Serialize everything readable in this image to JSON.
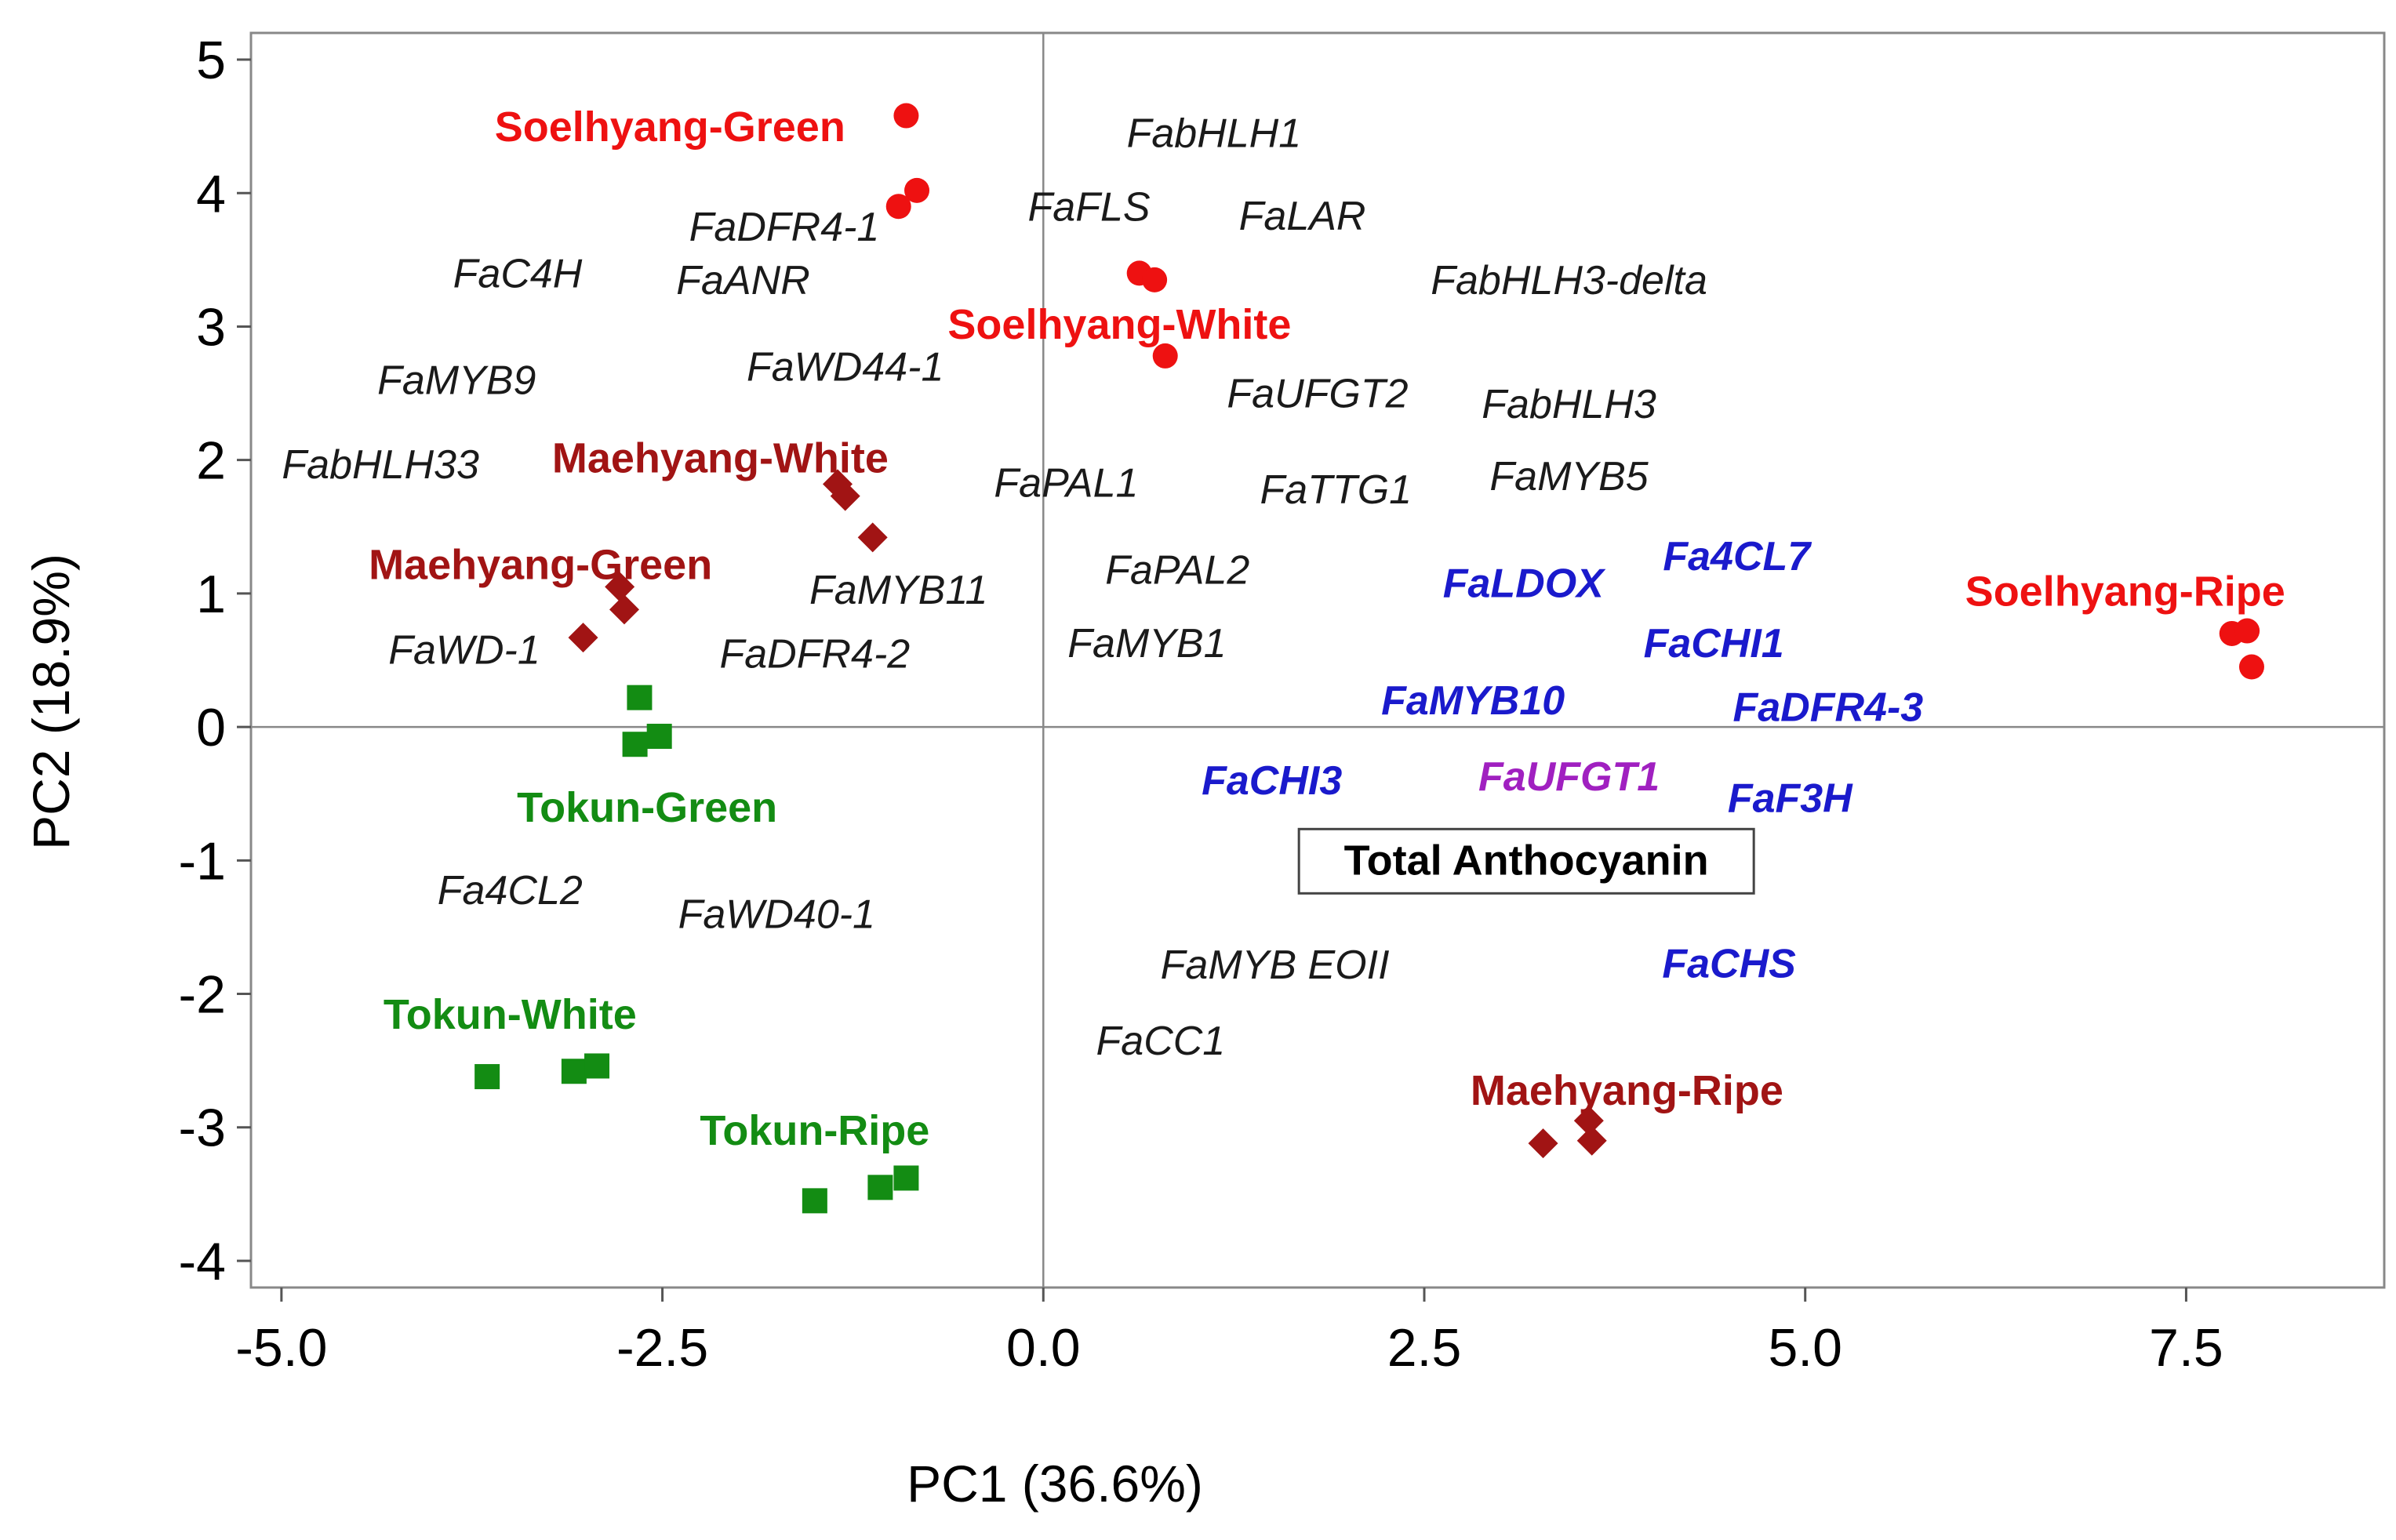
{
  "chart_data": {
    "type": "scatter",
    "title": "",
    "xlabel": "PC1 (36.6%)",
    "ylabel": "PC2 (18.9%)",
    "xlim": [
      -5.2,
      8.8
    ],
    "ylim": [
      -4.2,
      5.2
    ],
    "grid": false,
    "x_ticks": [
      {
        "value": -5.0,
        "label": "-5.0"
      },
      {
        "value": -2.5,
        "label": "-2.5"
      },
      {
        "value": 0.0,
        "label": "0.0"
      },
      {
        "value": 2.5,
        "label": "2.5"
      },
      {
        "value": 5.0,
        "label": "5.0"
      },
      {
        "value": 7.5,
        "label": "7.5"
      }
    ],
    "y_ticks": [
      {
        "value": 5,
        "label": "5"
      },
      {
        "value": 4,
        "label": "4"
      },
      {
        "value": 3,
        "label": "3"
      },
      {
        "value": 2,
        "label": "2"
      },
      {
        "value": 1,
        "label": "1"
      },
      {
        "value": 0,
        "label": "0"
      },
      {
        "value": -1,
        "label": "-1"
      },
      {
        "value": -2,
        "label": "-2"
      },
      {
        "value": -3,
        "label": "-3"
      },
      {
        "value": -4,
        "label": "-4"
      }
    ],
    "reference_lines": {
      "x": 0,
      "y": 0
    },
    "colors": {
      "soelhyang": "#ee1111",
      "maehyang": "#a11414",
      "tokun": "#138c13",
      "gene_default": "#1a1a1a",
      "gene_blue": "#1a1acc",
      "gene_purple": "#a020c0"
    },
    "series": [
      {
        "name": "Soelhyang",
        "marker": "circle",
        "color": "#ee1111",
        "points": [
          [
            -0.9,
            4.58
          ],
          [
            -0.83,
            4.02
          ],
          [
            -0.95,
            3.9
          ],
          [
            0.63,
            3.4
          ],
          [
            0.73,
            3.35
          ],
          [
            0.8,
            2.78
          ],
          [
            7.8,
            0.7
          ],
          [
            7.9,
            0.72
          ],
          [
            7.93,
            0.45
          ]
        ]
      },
      {
        "name": "Maehyang",
        "marker": "diamond",
        "color": "#a11414",
        "points": [
          [
            -1.35,
            1.82
          ],
          [
            -1.3,
            1.73
          ],
          [
            -1.12,
            1.42
          ],
          [
            -2.78,
            1.05
          ],
          [
            -2.75,
            0.88
          ],
          [
            -3.02,
            0.67
          ],
          [
            3.28,
            -3.12
          ],
          [
            3.58,
            -2.95
          ],
          [
            3.6,
            -3.1
          ]
        ]
      },
      {
        "name": "Tokun",
        "marker": "square",
        "color": "#138c13",
        "points": [
          [
            -2.65,
            0.22
          ],
          [
            -2.68,
            -0.13
          ],
          [
            -2.52,
            -0.07
          ],
          [
            -3.65,
            -2.62
          ],
          [
            -3.08,
            -2.58
          ],
          [
            -2.93,
            -2.54
          ],
          [
            -1.5,
            -3.55
          ],
          [
            -1.07,
            -3.45
          ],
          [
            -0.9,
            -3.38
          ]
        ]
      }
    ],
    "group_labels": [
      {
        "text": "Soelhyang-Green",
        "x": -2.45,
        "y": 4.5,
        "color": "#ee1111"
      },
      {
        "text": "Soelhyang-White",
        "x": 0.5,
        "y": 3.02,
        "color": "#ee1111"
      },
      {
        "text": "Soelhyang-Ripe",
        "x": 7.1,
        "y": 1.02,
        "color": "#ee1111"
      },
      {
        "text": "Maehyang-White",
        "x": -2.12,
        "y": 2.02,
        "color": "#a11414"
      },
      {
        "text": "Maehyang-Green",
        "x": -3.3,
        "y": 1.22,
        "color": "#a11414"
      },
      {
        "text": "Maehyang-Ripe",
        "x": 3.83,
        "y": -2.72,
        "color": "#a11414"
      },
      {
        "text": "Tokun-Green",
        "x": -2.6,
        "y": -0.6,
        "color": "#138c13"
      },
      {
        "text": "Tokun-White",
        "x": -3.5,
        "y": -2.15,
        "color": "#138c13"
      },
      {
        "text": "Tokun-Ripe",
        "x": -1.5,
        "y": -3.02,
        "color": "#138c13"
      }
    ],
    "gene_labels": [
      {
        "text": "FabHLH1",
        "x": 1.12,
        "y": 4.45,
        "style": "default"
      },
      {
        "text": "FaDFR4-1",
        "x": -1.7,
        "y": 3.75,
        "style": "default"
      },
      {
        "text": "FaFLS",
        "x": 0.3,
        "y": 3.9,
        "style": "default"
      },
      {
        "text": "FaLAR",
        "x": 1.7,
        "y": 3.83,
        "style": "default"
      },
      {
        "text": "FaC4H",
        "x": -3.45,
        "y": 3.4,
        "style": "default"
      },
      {
        "text": "FaANR",
        "x": -1.97,
        "y": 3.35,
        "style": "default"
      },
      {
        "text": "FabHLH3-delta",
        "x": 3.45,
        "y": 3.35,
        "style": "default"
      },
      {
        "text": "FaMYB9",
        "x": -3.85,
        "y": 2.6,
        "style": "default"
      },
      {
        "text": "FaWD44-1",
        "x": -1.3,
        "y": 2.7,
        "style": "default"
      },
      {
        "text": "FaUFGT2",
        "x": 1.8,
        "y": 2.5,
        "style": "default"
      },
      {
        "text": "FabHLH3",
        "x": 3.45,
        "y": 2.42,
        "style": "default"
      },
      {
        "text": "FabHLH33",
        "x": -4.35,
        "y": 1.97,
        "style": "default"
      },
      {
        "text": "FaPAL1",
        "x": 0.15,
        "y": 1.83,
        "style": "default"
      },
      {
        "text": "FaTTG1",
        "x": 1.92,
        "y": 1.78,
        "style": "default"
      },
      {
        "text": "FaMYB5",
        "x": 3.45,
        "y": 1.88,
        "style": "default"
      },
      {
        "text": "FaMYB11",
        "x": -0.95,
        "y": 1.03,
        "style": "default"
      },
      {
        "text": "FaPAL2",
        "x": 0.88,
        "y": 1.18,
        "style": "default"
      },
      {
        "text": "FaLDOX",
        "x": 3.15,
        "y": 1.08,
        "style": "blue"
      },
      {
        "text": "Fa4CL7",
        "x": 4.55,
        "y": 1.28,
        "style": "blue"
      },
      {
        "text": "FaWD-1",
        "x": -3.8,
        "y": 0.58,
        "style": "default"
      },
      {
        "text": "FaDFR4-2",
        "x": -1.5,
        "y": 0.55,
        "style": "default"
      },
      {
        "text": "FaMYB1",
        "x": 0.68,
        "y": 0.63,
        "style": "default"
      },
      {
        "text": "FaCHI1",
        "x": 4.4,
        "y": 0.63,
        "style": "blue"
      },
      {
        "text": "FaMYB10",
        "x": 2.82,
        "y": 0.2,
        "style": "blue"
      },
      {
        "text": "FaDFR4-3",
        "x": 5.15,
        "y": 0.15,
        "style": "blue"
      },
      {
        "text": "FaCHI3",
        "x": 1.5,
        "y": -0.4,
        "style": "blue"
      },
      {
        "text": "FaUFGT1",
        "x": 3.45,
        "y": -0.37,
        "style": "purple"
      },
      {
        "text": "FaF3H",
        "x": 4.9,
        "y": -0.53,
        "style": "blue"
      },
      {
        "text": "Fa4CL2",
        "x": -3.5,
        "y": -1.22,
        "style": "default"
      },
      {
        "text": "FaWD40-1",
        "x": -1.75,
        "y": -1.4,
        "style": "default"
      },
      {
        "text": "FaMYB EOII",
        "x": 1.52,
        "y": -1.78,
        "style": "default"
      },
      {
        "text": "FaCHS",
        "x": 4.5,
        "y": -1.77,
        "style": "blue"
      },
      {
        "text": "FaCC1",
        "x": 0.77,
        "y": -2.35,
        "style": "default"
      }
    ],
    "annotation": {
      "text": "Total Anthocyanin",
      "x": 3.17,
      "y": -1.0
    }
  }
}
